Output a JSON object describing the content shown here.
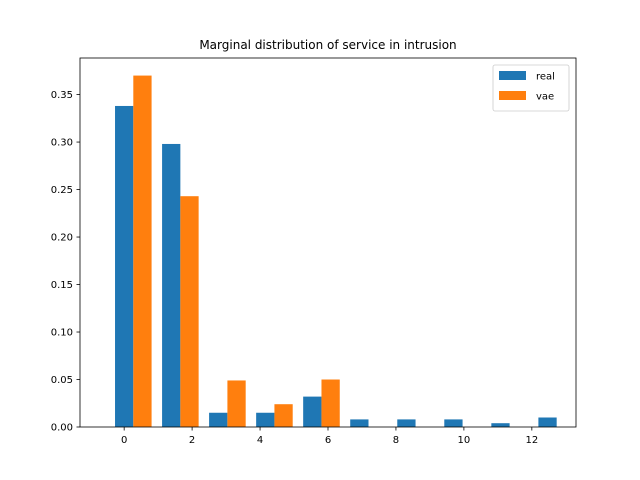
{
  "chart_data": {
    "type": "bar",
    "title": "Marginal distribution of service in intrusion",
    "xlabel": "",
    "ylabel": "",
    "x_ticks": [
      0,
      2,
      4,
      6,
      8,
      10,
      12
    ],
    "y_ticks": [
      0.0,
      0.05,
      0.1,
      0.15,
      0.2,
      0.25,
      0.3,
      0.35
    ],
    "xlim": [
      -1.3,
      13.3
    ],
    "ylim": [
      0,
      0.3885
    ],
    "legend_position": "top-right",
    "grid": false,
    "series": [
      {
        "name": "real",
        "color": "#1f77b4",
        "points": [
          {
            "x": 0.0,
            "y": 0.338
          },
          {
            "x": 1.385,
            "y": 0.298
          },
          {
            "x": 2.769,
            "y": 0.015
          },
          {
            "x": 4.154,
            "y": 0.015
          },
          {
            "x": 5.538,
            "y": 0.032
          },
          {
            "x": 6.923,
            "y": 0.008
          },
          {
            "x": 8.308,
            "y": 0.008
          },
          {
            "x": 9.692,
            "y": 0.008
          },
          {
            "x": 11.077,
            "y": 0.004
          },
          {
            "x": 12.462,
            "y": 0.01
          }
        ]
      },
      {
        "name": "vae",
        "color": "#ff7f0e",
        "points": [
          {
            "x": 0.538,
            "y": 0.37
          },
          {
            "x": 1.923,
            "y": 0.243
          },
          {
            "x": 3.308,
            "y": 0.049
          },
          {
            "x": 4.692,
            "y": 0.024
          },
          {
            "x": 6.077,
            "y": 0.05
          },
          {
            "x": 7.462,
            "y": 0.0
          },
          {
            "x": 8.846,
            "y": 0.0
          },
          {
            "x": 10.231,
            "y": 0.0
          },
          {
            "x": 11.615,
            "y": 0.0
          },
          {
            "x": 13.0,
            "y": 0.0
          }
        ]
      }
    ]
  }
}
